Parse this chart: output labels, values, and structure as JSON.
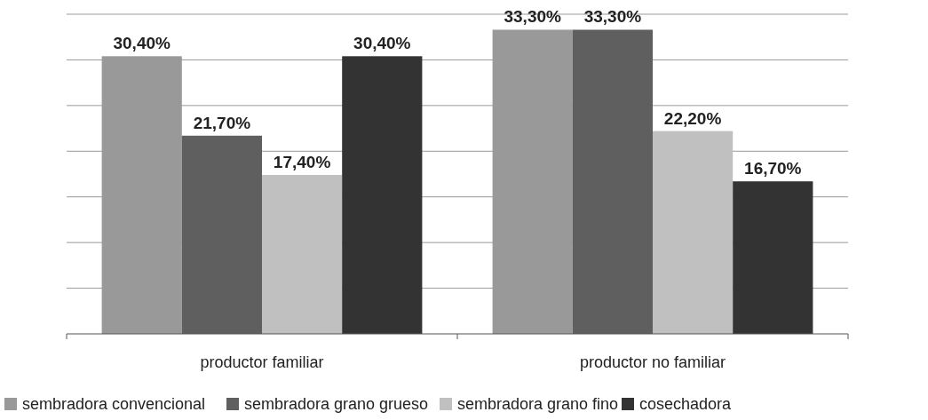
{
  "chart_data": {
    "type": "bar",
    "categories": [
      "productor familiar",
      "productor no familiar"
    ],
    "series": [
      {
        "name": "sembradora convencional",
        "color": "#999999",
        "values": [
          30.4,
          33.3
        ],
        "value_labels": [
          "30,40%",
          "33,30%"
        ]
      },
      {
        "name": "sembradora grano grueso",
        "color": "#5f5f5f",
        "values": [
          21.7,
          33.3
        ],
        "value_labels": [
          "21,70%",
          "33,30%"
        ]
      },
      {
        "name": "sembradora grano fino",
        "color": "#c0c0c0",
        "values": [
          17.4,
          22.2
        ],
        "value_labels": [
          "17,40%",
          "22,20%"
        ]
      },
      {
        "name": "cosechadora",
        "color": "#333333",
        "values": [
          30.4,
          16.7
        ],
        "value_labels": [
          "30,40%",
          "16,70%"
        ]
      }
    ],
    "ylim": [
      0,
      35
    ],
    "yticks": [
      {
        "value": 0,
        "label": null
      },
      {
        "value": 5,
        "label": null
      },
      {
        "value": 10,
        "label": null
      },
      {
        "value": 15,
        "label": null
      },
      {
        "value": 20,
        "label": null
      },
      {
        "value": 25,
        "label": null
      },
      {
        "value": 30,
        "label": null
      },
      {
        "value": 35,
        "label": null
      }
    ],
    "grid": "y",
    "legend": "bottom",
    "tick_labels": "x"
  }
}
